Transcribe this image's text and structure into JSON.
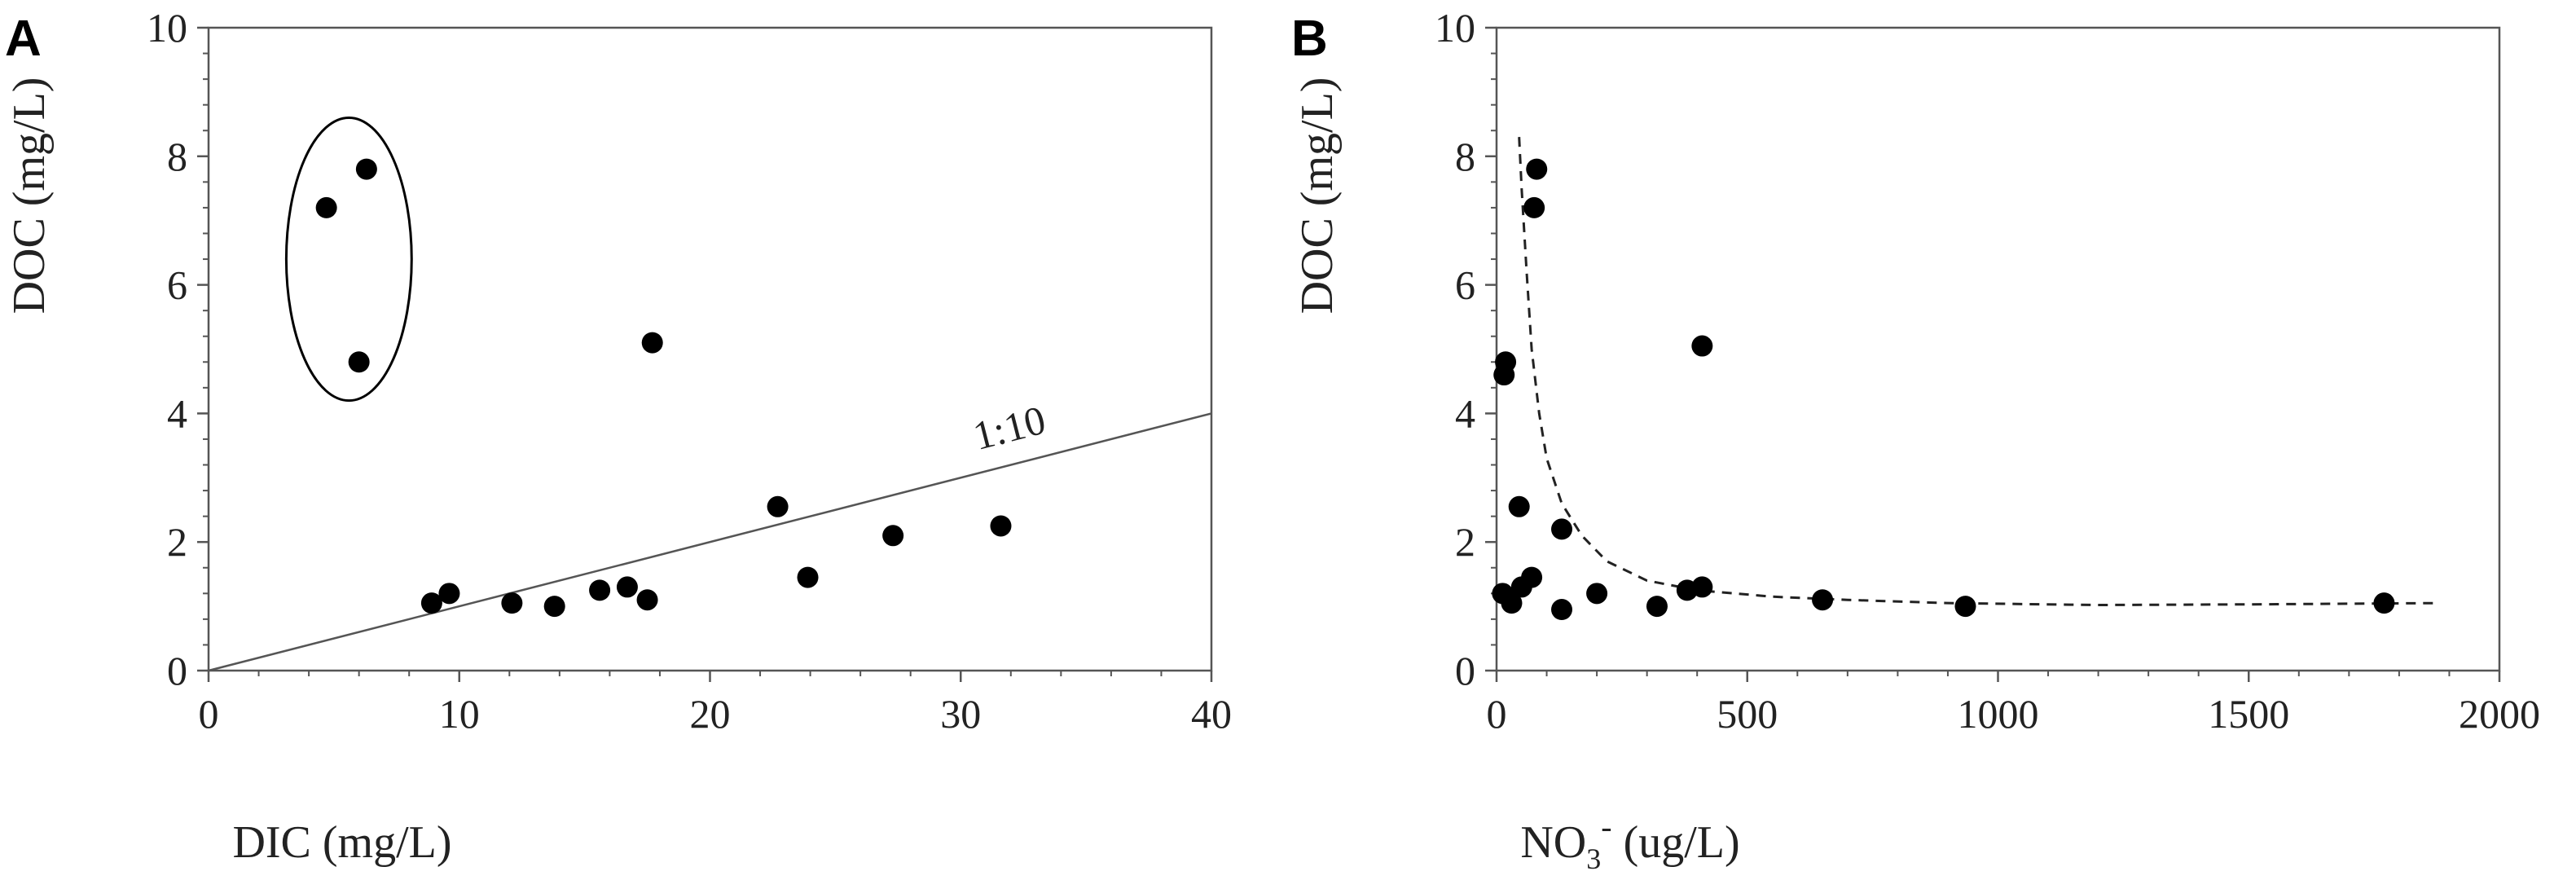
{
  "chart_data": [
    {
      "type": "scatter",
      "panel_label": "A",
      "xlabel": "DIC (mg/L)",
      "ylabel": "DOC (mg/L)",
      "xlim": [
        0,
        40
      ],
      "ylim": [
        0,
        10
      ],
      "xticks": [
        "0",
        "10",
        "20",
        "30",
        "40"
      ],
      "yticks": [
        "0",
        "2",
        "4",
        "6",
        "8",
        "10"
      ],
      "grid": false,
      "points": [
        {
          "x": 4.7,
          "y": 7.2
        },
        {
          "x": 6.3,
          "y": 7.8
        },
        {
          "x": 6.0,
          "y": 4.8
        },
        {
          "x": 17.7,
          "y": 5.1
        },
        {
          "x": 8.9,
          "y": 1.05
        },
        {
          "x": 9.6,
          "y": 1.2
        },
        {
          "x": 12.1,
          "y": 1.05
        },
        {
          "x": 13.8,
          "y": 1.0
        },
        {
          "x": 15.6,
          "y": 1.25
        },
        {
          "x": 16.7,
          "y": 1.3
        },
        {
          "x": 17.5,
          "y": 1.1
        },
        {
          "x": 22.7,
          "y": 2.55
        },
        {
          "x": 23.9,
          "y": 1.45
        },
        {
          "x": 27.3,
          "y": 2.1
        },
        {
          "x": 31.6,
          "y": 2.25
        }
      ],
      "reference_line": {
        "label": "1:10",
        "slope": 0.1,
        "intercept": 0,
        "x_range": [
          0,
          40
        ]
      },
      "highlight_ellipse": {
        "center": [
          5.6,
          6.4
        ],
        "radius_x": 2.5,
        "radius_y": 2.2
      }
    },
    {
      "type": "scatter",
      "panel_label": "B",
      "xlabel": {
        "main": "NO",
        "sub": "3",
        "sup": "-",
        "rest": " (ug/L)"
      },
      "ylabel": "DOC (mg/L)",
      "xlim": [
        0,
        2000
      ],
      "ylim": [
        0,
        10
      ],
      "xticks": [
        "0",
        "500",
        "1000",
        "1500",
        "2000"
      ],
      "yticks": [
        "0",
        "2",
        "4",
        "6",
        "8",
        "10"
      ],
      "grid": false,
      "points": [
        {
          "x": 80,
          "y": 7.8
        },
        {
          "x": 75,
          "y": 7.2
        },
        {
          "x": 18,
          "y": 4.8
        },
        {
          "x": 15,
          "y": 4.6
        },
        {
          "x": 410,
          "y": 5.05
        },
        {
          "x": 45,
          "y": 2.55
        },
        {
          "x": 130,
          "y": 2.2
        },
        {
          "x": 12,
          "y": 1.2
        },
        {
          "x": 30,
          "y": 1.05
        },
        {
          "x": 50,
          "y": 1.3
        },
        {
          "x": 70,
          "y": 1.45
        },
        {
          "x": 130,
          "y": 0.95
        },
        {
          "x": 200,
          "y": 1.2
        },
        {
          "x": 320,
          "y": 1.0
        },
        {
          "x": 380,
          "y": 1.25
        },
        {
          "x": 410,
          "y": 1.3
        },
        {
          "x": 650,
          "y": 1.1
        },
        {
          "x": 935,
          "y": 1.0
        },
        {
          "x": 1770,
          "y": 1.05
        }
      ],
      "fit_curve": {
        "style": "dashed",
        "points": [
          [
            45,
            8.3
          ],
          [
            50,
            7.5
          ],
          [
            60,
            6.2
          ],
          [
            70,
            5.0
          ],
          [
            85,
            4.0
          ],
          [
            100,
            3.3
          ],
          [
            130,
            2.6
          ],
          [
            170,
            2.1
          ],
          [
            220,
            1.7
          ],
          [
            300,
            1.4
          ],
          [
            400,
            1.25
          ],
          [
            550,
            1.15
          ],
          [
            700,
            1.1
          ],
          [
            900,
            1.05
          ],
          [
            1200,
            1.02
          ],
          [
            1500,
            1.03
          ],
          [
            1880,
            1.05
          ]
        ]
      }
    }
  ]
}
